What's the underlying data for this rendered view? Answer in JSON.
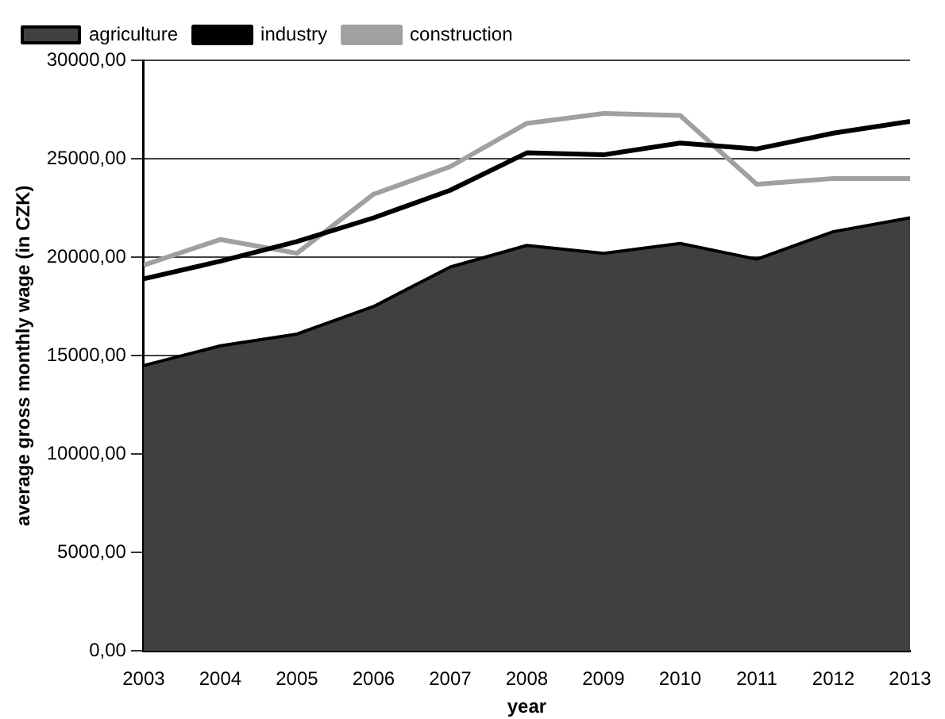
{
  "chart_data": {
    "type": "line",
    "xlabel": "year",
    "ylabel": "average gross monthly wage (in CZK)",
    "x": [
      2003,
      2004,
      2005,
      2006,
      2007,
      2008,
      2009,
      2010,
      2011,
      2012,
      2013
    ],
    "xlim": [
      2003,
      2013
    ],
    "xticks": [
      2003,
      2004,
      2005,
      2006,
      2007,
      2008,
      2009,
      2010,
      2011,
      2012,
      2013
    ],
    "ylim": [
      0,
      30000
    ],
    "yticks": [
      {
        "value": 0,
        "label": "0,00"
      },
      {
        "value": 5000,
        "label": "5000,00"
      },
      {
        "value": 10000,
        "label": "10000,00"
      },
      {
        "value": 15000,
        "label": "15000,00"
      },
      {
        "value": 20000,
        "label": "20000,00"
      },
      {
        "value": 25000,
        "label": "25000,00"
      },
      {
        "value": 30000,
        "label": "30000,00"
      }
    ],
    "grid": "y",
    "legend": "top left",
    "marker": "none",
    "series": [
      {
        "name": "agriculture",
        "type": "area",
        "color": "#404040",
        "values": [
          14500,
          15500,
          16100,
          17500,
          19500,
          20600,
          20200,
          20700,
          19900,
          21300,
          22000
        ]
      },
      {
        "name": "industry",
        "type": "line",
        "color": "#000000",
        "values": [
          18900,
          19800,
          20800,
          22000,
          23400,
          25300,
          25200,
          25800,
          25500,
          26300,
          26900
        ]
      },
      {
        "name": "construction",
        "type": "line",
        "color": "#a0a0a0",
        "values": [
          19600,
          20900,
          20200,
          23200,
          24600,
          26800,
          27300,
          27200,
          23700,
          24000,
          24000
        ]
      }
    ]
  }
}
